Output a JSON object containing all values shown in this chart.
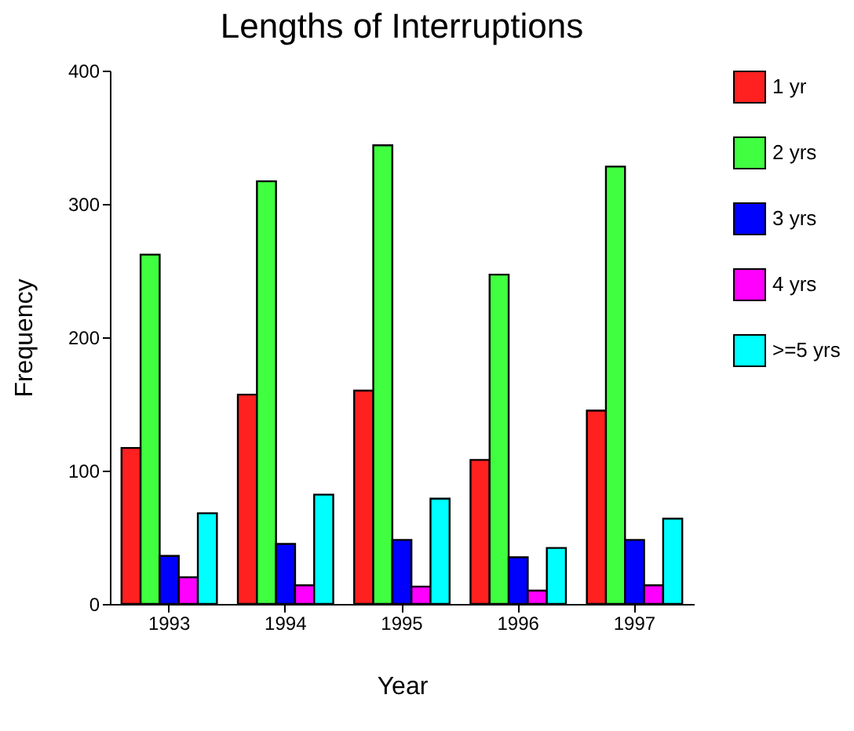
{
  "chart_data": {
    "type": "bar",
    "title": "Lengths of Interruptions",
    "xlabel": "Year",
    "ylabel": "Frequency",
    "categories": [
      "1993",
      "1994",
      "1995",
      "1996",
      "1997"
    ],
    "series": [
      {
        "name": "1 yr",
        "color": "#ff2020",
        "values": [
          117,
          157,
          160,
          108,
          145
        ]
      },
      {
        "name": "2 yrs",
        "color": "#40ff40",
        "values": [
          262,
          317,
          344,
          247,
          328
        ]
      },
      {
        "name": "3 yrs",
        "color": "#0000ff",
        "values": [
          36,
          45,
          48,
          35,
          48
        ]
      },
      {
        "name": "4 yrs",
        "color": "#ff00ff",
        "values": [
          20,
          14,
          13,
          10,
          14
        ]
      },
      {
        "name": ">=5 yrs",
        "color": "#00ffff",
        "values": [
          68,
          82,
          79,
          42,
          64
        ]
      }
    ],
    "ylim": [
      0,
      400
    ],
    "yticks": [
      0,
      100,
      200,
      300,
      400
    ],
    "grid": false,
    "legend": "right"
  }
}
